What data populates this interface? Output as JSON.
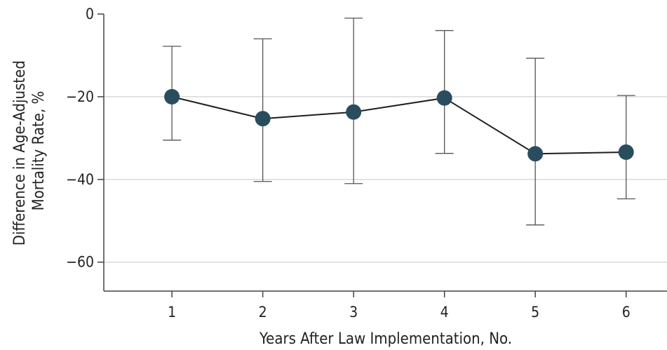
{
  "chart_data": {
    "type": "line",
    "title": "",
    "xlabel": "Years After Law Implementation, No.",
    "ylabel": [
      "Difference in Age-Adjusted",
      "Mortality Rate, %"
    ],
    "x": [
      1,
      2,
      3,
      4,
      5,
      6
    ],
    "xlim": [
      0.25,
      6.45
    ],
    "ylim": [
      -67,
      0
    ],
    "yticks": [
      0,
      -20,
      -40,
      -60
    ],
    "series": [
      {
        "values": [
          -20.0,
          -25.3,
          -23.7,
          -20.3,
          -33.8,
          -33.4
        ],
        "ci_upper": [
          -7.8,
          -6.0,
          -1.0,
          -4.0,
          -10.7,
          -19.7
        ],
        "ci_lower": [
          -30.5,
          -40.5,
          -41.0,
          -33.7,
          -51.0,
          -44.7
        ],
        "marker_color": "#2a4d5e",
        "line_color": "#1e1e1e"
      }
    ],
    "grid": true,
    "legend": "none"
  }
}
